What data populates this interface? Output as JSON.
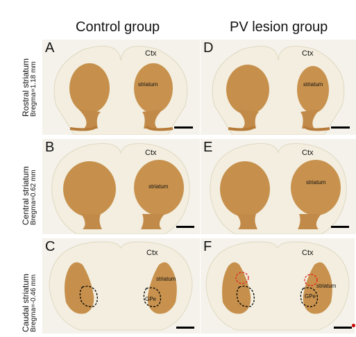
{
  "columns": [
    "Control group",
    "PV lesion group"
  ],
  "rows": [
    {
      "region": "Rostral striatum",
      "bregma": "Bregma=1.18 mm"
    },
    {
      "region": "Central striatum",
      "bregma": "Bregma=0.62 mm"
    },
    {
      "region": "Caudal striatum",
      "bregma": "Bregma=-0.46 mm"
    }
  ],
  "panels": {
    "A": {
      "label": "A",
      "ctx": "Ctx",
      "striatum": "striatum"
    },
    "B": {
      "label": "B",
      "ctx": "Ctx",
      "striatum": "striatum"
    },
    "C": {
      "label": "C",
      "ctx": "Ctx",
      "striatum": "striatum",
      "gpe": "GPe"
    },
    "D": {
      "label": "D",
      "ctx": "Ctx",
      "striatum": "striatum"
    },
    "E": {
      "label": "E",
      "ctx": "Ctx",
      "striatum": "striatum"
    },
    "F": {
      "label": "F",
      "ctx": "Ctx",
      "striatum": "striatum",
      "gpe": "GPe"
    }
  },
  "colors": {
    "tissue": "#f3efe1",
    "stain": "#c8934f",
    "dashed_control": "#000000",
    "dashed_lesion": "#dd1c1c"
  }
}
